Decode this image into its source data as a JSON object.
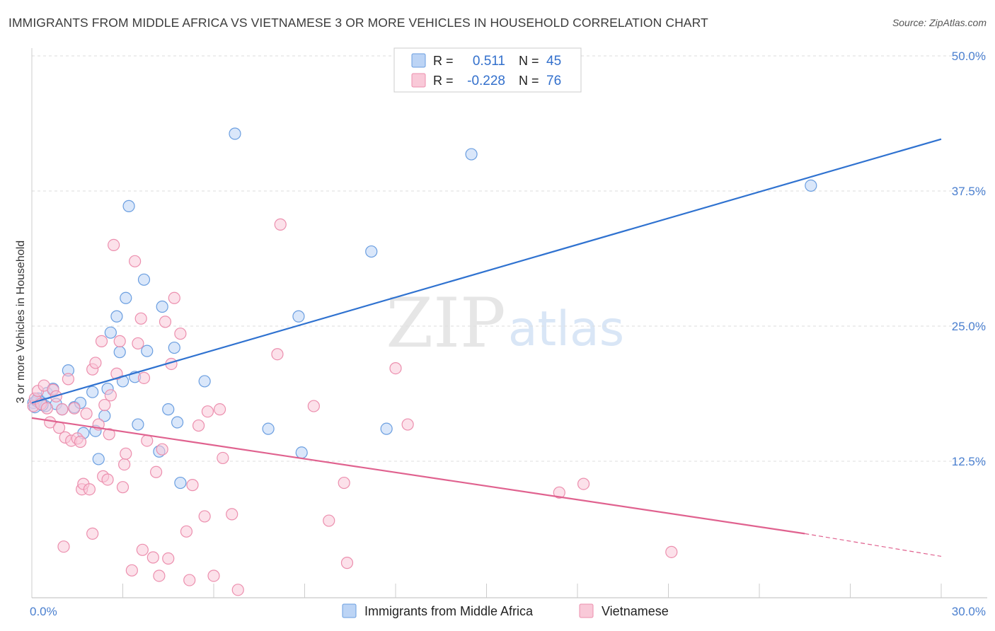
{
  "header": {
    "title": "IMMIGRANTS FROM MIDDLE AFRICA VS VIETNAMESE 3 OR MORE VEHICLES IN HOUSEHOLD CORRELATION CHART",
    "source": "Source: ZipAtlas.com"
  },
  "watermark": {
    "zip": "ZIP",
    "atlas": "atlas"
  },
  "chart_data": {
    "type": "scatter",
    "title": "IMMIGRANTS FROM MIDDLE AFRICA VS VIETNAMESE 3 OR MORE VEHICLES IN HOUSEHOLD CORRELATION CHART",
    "xlabel": "",
    "ylabel": "3 or more Vehicles in Household",
    "xlim": [
      0,
      30
    ],
    "ylim": [
      0,
      50
    ],
    "x_tick_labels": [
      "0.0%",
      "30.0%"
    ],
    "y_ticks": [
      12.5,
      25.0,
      37.5,
      50.0
    ],
    "y_tick_labels": [
      "12.5%",
      "25.0%",
      "37.5%",
      "50.0%"
    ],
    "grid": true,
    "legend": {
      "placement": "top-center",
      "rows": [
        {
          "r_label": "R =",
          "r_value": "0.511",
          "n_label": "N =",
          "n_value": "45",
          "color": "#a9c7f2"
        },
        {
          "r_label": "R =",
          "r_value": "-0.228",
          "n_label": "N =",
          "n_value": "76",
          "color": "#f6b8cc"
        }
      ]
    },
    "series": [
      {
        "name": "Immigrants from Middle Africa",
        "color": "#6a9ee0",
        "fill": "#bcd4f5",
        "trend": {
          "x": [
            0,
            30
          ],
          "y": [
            17.9,
            42.3
          ],
          "color": "#2f72d0"
        },
        "points": [
          [
            0.05,
            17.9
          ],
          [
            0.1,
            17.5
          ],
          [
            0.2,
            18.3
          ],
          [
            0.3,
            18.0
          ],
          [
            0.45,
            17.6
          ],
          [
            0.5,
            18.8
          ],
          [
            0.7,
            19.2
          ],
          [
            0.8,
            17.8
          ],
          [
            1.0,
            17.3
          ],
          [
            1.2,
            20.9
          ],
          [
            1.4,
            17.5
          ],
          [
            1.6,
            17.9
          ],
          [
            1.7,
            15.1
          ],
          [
            2.0,
            18.9
          ],
          [
            2.1,
            15.3
          ],
          [
            2.2,
            12.7
          ],
          [
            2.4,
            16.7
          ],
          [
            2.5,
            19.2
          ],
          [
            2.6,
            24.4
          ],
          [
            2.8,
            25.9
          ],
          [
            2.9,
            22.6
          ],
          [
            3.0,
            19.9
          ],
          [
            3.1,
            27.6
          ],
          [
            3.2,
            36.1
          ],
          [
            3.4,
            20.3
          ],
          [
            3.5,
            15.9
          ],
          [
            3.7,
            29.3
          ],
          [
            3.8,
            22.7
          ],
          [
            4.2,
            13.4
          ],
          [
            4.3,
            26.8
          ],
          [
            4.5,
            17.3
          ],
          [
            4.7,
            23.0
          ],
          [
            4.8,
            16.1
          ],
          [
            4.9,
            10.5
          ],
          [
            5.7,
            19.9
          ],
          [
            6.7,
            42.8
          ],
          [
            7.8,
            15.5
          ],
          [
            8.8,
            25.9
          ],
          [
            8.9,
            13.3
          ],
          [
            11.2,
            31.9
          ],
          [
            11.7,
            15.5
          ],
          [
            14.5,
            40.9
          ],
          [
            25.7,
            38.0
          ],
          [
            0.15,
            18.1
          ],
          [
            0.35,
            17.7
          ]
        ]
      },
      {
        "name": "Vietnamese",
        "color": "#ec8fae",
        "fill": "#f9c9d8",
        "trend": {
          "x": [
            0,
            25.5
          ],
          "y": [
            16.5,
            5.8
          ],
          "color": "#e0628f"
        },
        "trend_dashed": {
          "x": [
            25.5,
            30
          ],
          "y": [
            5.8,
            3.7
          ]
        },
        "points": [
          [
            0.05,
            17.6
          ],
          [
            0.1,
            18.3
          ],
          [
            0.2,
            19.0
          ],
          [
            0.3,
            17.8
          ],
          [
            0.4,
            19.5
          ],
          [
            0.5,
            17.4
          ],
          [
            0.6,
            16.1
          ],
          [
            0.7,
            19.1
          ],
          [
            0.8,
            18.5
          ],
          [
            0.9,
            15.6
          ],
          [
            1.0,
            17.3
          ],
          [
            1.05,
            4.6
          ],
          [
            1.1,
            14.7
          ],
          [
            1.2,
            20.1
          ],
          [
            1.3,
            14.4
          ],
          [
            1.4,
            17.4
          ],
          [
            1.5,
            14.6
          ],
          [
            1.6,
            14.3
          ],
          [
            1.65,
            9.9
          ],
          [
            1.7,
            10.4
          ],
          [
            1.8,
            16.9
          ],
          [
            1.9,
            9.9
          ],
          [
            2.0,
            21.0
          ],
          [
            2.1,
            21.6
          ],
          [
            2.2,
            15.9
          ],
          [
            2.3,
            23.6
          ],
          [
            2.35,
            11.1
          ],
          [
            2.4,
            17.7
          ],
          [
            2.5,
            10.8
          ],
          [
            2.55,
            15.0
          ],
          [
            2.6,
            18.6
          ],
          [
            2.7,
            32.5
          ],
          [
            2.8,
            20.6
          ],
          [
            2.9,
            23.6
          ],
          [
            3.0,
            10.1
          ],
          [
            3.05,
            12.2
          ],
          [
            3.1,
            13.2
          ],
          [
            3.3,
            2.4
          ],
          [
            3.4,
            31.0
          ],
          [
            3.5,
            23.4
          ],
          [
            3.6,
            25.7
          ],
          [
            3.65,
            4.3
          ],
          [
            3.7,
            20.2
          ],
          [
            3.8,
            14.4
          ],
          [
            4.0,
            3.6
          ],
          [
            4.1,
            11.5
          ],
          [
            4.2,
            1.9
          ],
          [
            4.3,
            13.6
          ],
          [
            4.4,
            25.4
          ],
          [
            4.5,
            3.5
          ],
          [
            4.6,
            21.5
          ],
          [
            4.7,
            27.6
          ],
          [
            4.9,
            24.3
          ],
          [
            5.1,
            6.0
          ],
          [
            5.2,
            1.5
          ],
          [
            5.3,
            10.3
          ],
          [
            5.5,
            15.8
          ],
          [
            5.7,
            7.4
          ],
          [
            5.8,
            17.1
          ],
          [
            6.0,
            1.9
          ],
          [
            6.2,
            17.3
          ],
          [
            6.3,
            12.8
          ],
          [
            6.6,
            7.6
          ],
          [
            6.8,
            0.6
          ],
          [
            8.2,
            34.4
          ],
          [
            8.1,
            22.4
          ],
          [
            9.3,
            17.6
          ],
          [
            9.8,
            7.0
          ],
          [
            10.3,
            10.5
          ],
          [
            10.4,
            3.1
          ],
          [
            12.0,
            21.1
          ],
          [
            12.4,
            15.9
          ],
          [
            17.4,
            9.6
          ],
          [
            18.2,
            10.4
          ],
          [
            21.1,
            4.1
          ],
          [
            2.0,
            5.8
          ]
        ]
      }
    ]
  },
  "bottom_legend": {
    "items": [
      {
        "label": "Immigrants from Middle Africa"
      },
      {
        "label": "Vietnamese"
      }
    ]
  }
}
